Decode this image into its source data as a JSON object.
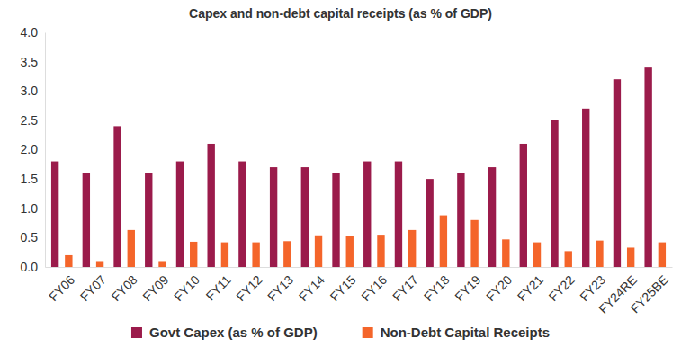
{
  "chart_data": {
    "type": "bar",
    "title": "Capex and non-debt capital receipts (as % of GDP)",
    "categories": [
      "FY06",
      "FY07",
      "FY08",
      "FY09",
      "FY10",
      "FY11",
      "FY12",
      "FY13",
      "FY14",
      "FY15",
      "FY16",
      "FY17",
      "FY18",
      "FY19",
      "FY20",
      "FY21",
      "FY22",
      "FY23",
      "FY24RE",
      "FY25BE"
    ],
    "series": [
      {
        "name": "Govt Capex (as % of GDP)",
        "color": "#9b1b4b",
        "values": [
          1.8,
          1.6,
          2.4,
          1.6,
          1.8,
          2.1,
          1.8,
          1.7,
          1.7,
          1.6,
          1.8,
          1.8,
          1.5,
          1.6,
          1.7,
          2.1,
          2.5,
          2.7,
          3.2,
          3.4
        ]
      },
      {
        "name": "Non-Debt Capital Receipts",
        "color": "#f4652a",
        "values": [
          0.2,
          0.1,
          0.63,
          0.1,
          0.43,
          0.42,
          0.42,
          0.44,
          0.54,
          0.53,
          0.55,
          0.63,
          0.88,
          0.8,
          0.47,
          0.42,
          0.27,
          0.45,
          0.33,
          0.42
        ]
      }
    ],
    "ylim": [
      0,
      4
    ],
    "yticks": [
      {
        "value": 0,
        "label": "0.0"
      },
      0.5,
      {
        "value": 1,
        "label": "1.0"
      },
      1.5,
      {
        "value": 2,
        "label": "2.0"
      },
      2.5,
      {
        "value": 3,
        "label": "3.0"
      },
      3.5,
      {
        "value": 4,
        "label": "4.0"
      }
    ],
    "grid": false,
    "legend": "bottom"
  }
}
